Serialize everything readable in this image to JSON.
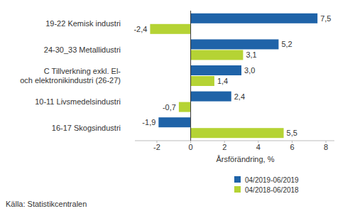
{
  "chart_data": {
    "type": "bar",
    "orientation": "horizontal",
    "categories": [
      "19-22 Kemisk industri",
      "24-30_33 Metallidustri",
      "C Tillverkning exkl. El-\noch elektronikindustri (26-27)",
      "10-11 Livsmedelsindustri",
      "16-17 Skogsindustri"
    ],
    "series": [
      {
        "name": "04/2019-06/2019",
        "color": "#1f63a8",
        "values": [
          7.5,
          5.2,
          3.0,
          2.4,
          -1.9
        ],
        "value_labels": [
          "7,5",
          "5,2",
          "3,0",
          "2,4",
          "-1,9"
        ]
      },
      {
        "name": "04/2018-06/2018",
        "color": "#b5d334",
        "values": [
          -2.4,
          3.1,
          1.4,
          -0.7,
          5.5
        ],
        "value_labels": [
          "-2,4",
          "3,1",
          "1,4",
          "-0,7",
          "5,5"
        ]
      }
    ],
    "x_label": "Årsförändring, %",
    "xlim": [
      -3.3,
      8.5
    ],
    "xticks": [
      -2,
      0,
      2,
      4,
      6,
      8
    ],
    "grid": false,
    "legend": "bottom",
    "data_labels": true,
    "source": "Källa: Statistikcentralen"
  }
}
